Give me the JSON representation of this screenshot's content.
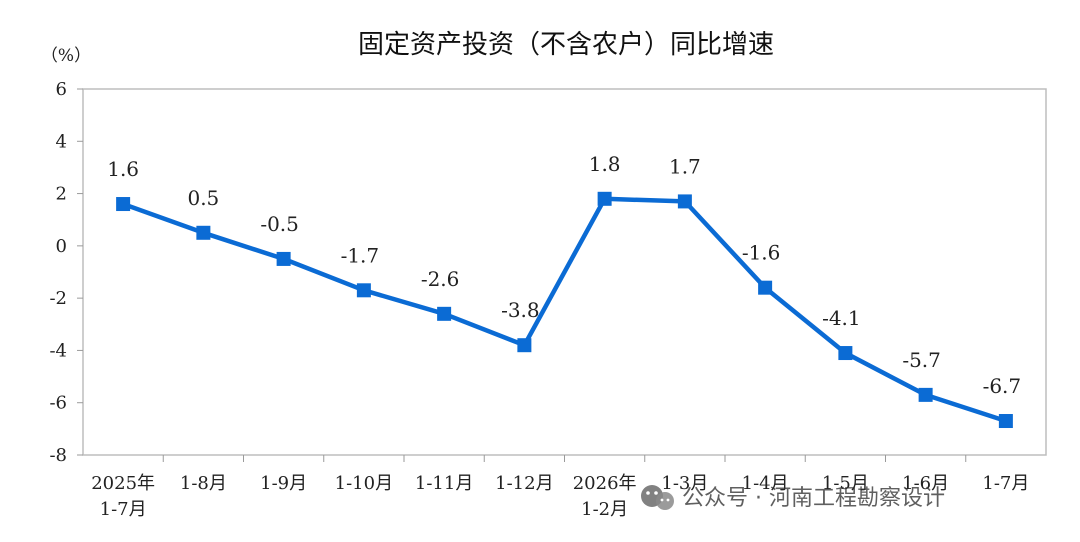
{
  "chart_data": {
    "type": "line",
    "title": "固定资产投资（不含农户）同比增速",
    "ylabel": "（%）",
    "ylim": [
      -8,
      6
    ],
    "yticks": [
      6,
      4,
      2,
      0,
      -2,
      -4,
      -6,
      -8
    ],
    "yticks_labels": [
      "6",
      "4",
      "2",
      "0",
      "-2",
      "-4",
      "-6",
      "-8"
    ],
    "categories": [
      [
        "2025年",
        "1-7月"
      ],
      [
        "1-8月"
      ],
      [
        "1-9月"
      ],
      [
        "1-10月"
      ],
      [
        "1-11月"
      ],
      [
        "1-12月"
      ],
      [
        "2026年",
        "1-2月"
      ],
      [
        "1-3月"
      ],
      [
        "1-4月"
      ],
      [
        "1-5月"
      ],
      [
        "1-6月"
      ],
      [
        "1-7月"
      ]
    ],
    "series": [
      {
        "values": [
          1.6,
          0.5,
          -0.5,
          -1.7,
          -2.6,
          -3.8,
          1.8,
          1.7,
          -1.6,
          -4.1,
          -5.7,
          -6.7
        ],
        "labels": [
          "1.6",
          "0.5",
          "-0.5",
          "-1.7",
          "-2.6",
          "-3.8",
          "1.8",
          "1.7",
          "-1.6",
          "-4.1",
          "-5.7",
          "-6.7"
        ],
        "color": "#0b6bd4"
      }
    ],
    "grid": false,
    "legend": "none"
  },
  "watermark": {
    "icon": "wechat-icon",
    "text": "公众号 · 河南工程勘察设计"
  }
}
